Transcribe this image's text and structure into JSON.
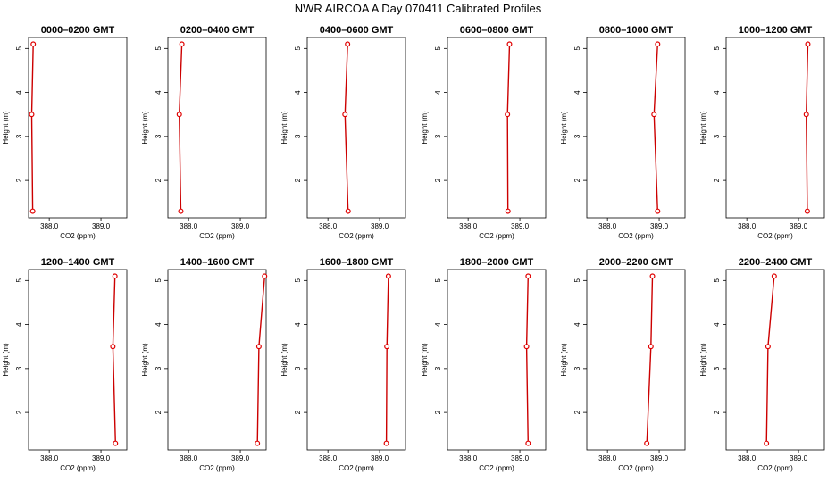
{
  "figure": {
    "title": "NWR AIRCOA A  Day 070411  Calibrated Profiles"
  },
  "colors": {
    "line": "#cc0000",
    "marker": "#e00000",
    "frame": "#000000"
  },
  "chart_data": [
    {
      "type": "line",
      "title": "0000–0200 GMT",
      "xlabel": "CO2 (ppm)",
      "ylabel": "Height (m)",
      "xlim": [
        387.6,
        389.5
      ],
      "ylim": [
        1.15,
        5.25
      ],
      "x_ticks": [
        "388.0",
        "389.0"
      ],
      "y_ticks": [
        "2",
        "3",
        "4",
        "5"
      ],
      "series": [
        {
          "x": [
            387.68,
            387.66,
            387.69
          ],
          "y": [
            1.3,
            3.5,
            5.1
          ]
        }
      ]
    },
    {
      "type": "line",
      "title": "0200–0400 GMT",
      "xlabel": "CO2 (ppm)",
      "ylabel": "Height (m)",
      "xlim": [
        387.6,
        389.5
      ],
      "ylim": [
        1.15,
        5.25
      ],
      "x_ticks": [
        "388.0",
        "389.0"
      ],
      "y_ticks": [
        "2",
        "3",
        "4",
        "5"
      ],
      "series": [
        {
          "x": [
            387.85,
            387.82,
            387.87
          ],
          "y": [
            1.3,
            3.5,
            5.1
          ]
        }
      ]
    },
    {
      "type": "line",
      "title": "0400–0600 GMT",
      "xlabel": "CO2 (ppm)",
      "ylabel": "Height (m)",
      "xlim": [
        387.6,
        389.5
      ],
      "ylim": [
        1.15,
        5.25
      ],
      "x_ticks": [
        "388.0",
        "389.0"
      ],
      "y_ticks": [
        "2",
        "3",
        "4",
        "5"
      ],
      "series": [
        {
          "x": [
            388.39,
            388.33,
            388.38
          ],
          "y": [
            1.3,
            3.5,
            5.1
          ]
        }
      ]
    },
    {
      "type": "line",
      "title": "0600–0800 GMT",
      "xlabel": "CO2 (ppm)",
      "ylabel": "Height (m)",
      "xlim": [
        387.6,
        389.5
      ],
      "ylim": [
        1.15,
        5.25
      ],
      "x_ticks": [
        "388.0",
        "389.0"
      ],
      "y_ticks": [
        "2",
        "3",
        "4",
        "5"
      ],
      "series": [
        {
          "x": [
            388.77,
            388.76,
            388.8
          ],
          "y": [
            1.3,
            3.5,
            5.1
          ]
        }
      ]
    },
    {
      "type": "line",
      "title": "0800–1000 GMT",
      "xlabel": "CO2 (ppm)",
      "ylabel": "Height (m)",
      "xlim": [
        387.6,
        389.5
      ],
      "ylim": [
        1.15,
        5.25
      ],
      "x_ticks": [
        "388.0",
        "389.0"
      ],
      "y_ticks": [
        "2",
        "3",
        "4",
        "5"
      ],
      "series": [
        {
          "x": [
            388.97,
            388.9,
            388.97
          ],
          "y": [
            1.3,
            3.5,
            5.1
          ]
        }
      ]
    },
    {
      "type": "line",
      "title": "1000–1200 GMT",
      "xlabel": "CO2 (ppm)",
      "ylabel": "Height (m)",
      "xlim": [
        387.6,
        389.5
      ],
      "ylim": [
        1.15,
        5.25
      ],
      "x_ticks": [
        "388.0",
        "389.0"
      ],
      "y_ticks": [
        "2",
        "3",
        "4",
        "5"
      ],
      "series": [
        {
          "x": [
            389.17,
            389.15,
            389.18
          ],
          "y": [
            1.3,
            3.5,
            5.1
          ]
        }
      ]
    },
    {
      "type": "line",
      "title": "1200–1400 GMT",
      "xlabel": "CO2 (ppm)",
      "ylabel": "Height (m)",
      "xlim": [
        387.6,
        389.5
      ],
      "ylim": [
        1.15,
        5.25
      ],
      "x_ticks": [
        "388.0",
        "389.0"
      ],
      "y_ticks": [
        "2",
        "3",
        "4",
        "5"
      ],
      "series": [
        {
          "x": [
            389.28,
            389.23,
            389.27
          ],
          "y": [
            1.3,
            3.5,
            5.1
          ]
        }
      ]
    },
    {
      "type": "line",
      "title": "1400–1600 GMT",
      "xlabel": "CO2 (ppm)",
      "ylabel": "Height (m)",
      "xlim": [
        387.6,
        389.5
      ],
      "ylim": [
        1.15,
        5.25
      ],
      "x_ticks": [
        "388.0",
        "389.0"
      ],
      "y_ticks": [
        "2",
        "3",
        "4",
        "5"
      ],
      "series": [
        {
          "x": [
            389.33,
            389.36,
            389.47
          ],
          "y": [
            1.3,
            3.5,
            5.1
          ]
        }
      ]
    },
    {
      "type": "line",
      "title": "1600–1800 GMT",
      "xlabel": "CO2 (ppm)",
      "ylabel": "Height (m)",
      "xlim": [
        387.6,
        389.5
      ],
      "ylim": [
        1.15,
        5.25
      ],
      "x_ticks": [
        "388.0",
        "389.0"
      ],
      "y_ticks": [
        "2",
        "3",
        "4",
        "5"
      ],
      "series": [
        {
          "x": [
            389.13,
            389.14,
            389.17
          ],
          "y": [
            1.3,
            3.5,
            5.1
          ]
        }
      ]
    },
    {
      "type": "line",
      "title": "1800–2000 GMT",
      "xlabel": "CO2 (ppm)",
      "ylabel": "Height (m)",
      "xlim": [
        387.6,
        389.5
      ],
      "ylim": [
        1.15,
        5.25
      ],
      "x_ticks": [
        "388.0",
        "389.0"
      ],
      "y_ticks": [
        "2",
        "3",
        "4",
        "5"
      ],
      "series": [
        {
          "x": [
            389.16,
            389.13,
            389.16
          ],
          "y": [
            1.3,
            3.5,
            5.1
          ]
        }
      ]
    },
    {
      "type": "line",
      "title": "2000–2200 GMT",
      "xlabel": "CO2 (ppm)",
      "ylabel": "Height (m)",
      "xlim": [
        387.6,
        389.5
      ],
      "ylim": [
        1.15,
        5.25
      ],
      "x_ticks": [
        "388.0",
        "389.0"
      ],
      "y_ticks": [
        "2",
        "3",
        "4",
        "5"
      ],
      "series": [
        {
          "x": [
            388.76,
            388.84,
            388.87
          ],
          "y": [
            1.3,
            3.5,
            5.1
          ]
        }
      ]
    },
    {
      "type": "line",
      "title": "2200–2400 GMT",
      "xlabel": "CO2 (ppm)",
      "ylabel": "Height (m)",
      "xlim": [
        387.6,
        389.5
      ],
      "ylim": [
        1.15,
        5.25
      ],
      "x_ticks": [
        "388.0",
        "389.0"
      ],
      "y_ticks": [
        "2",
        "3",
        "4",
        "5"
      ],
      "series": [
        {
          "x": [
            388.38,
            388.41,
            388.53
          ],
          "y": [
            1.3,
            3.5,
            5.1
          ]
        }
      ]
    }
  ]
}
